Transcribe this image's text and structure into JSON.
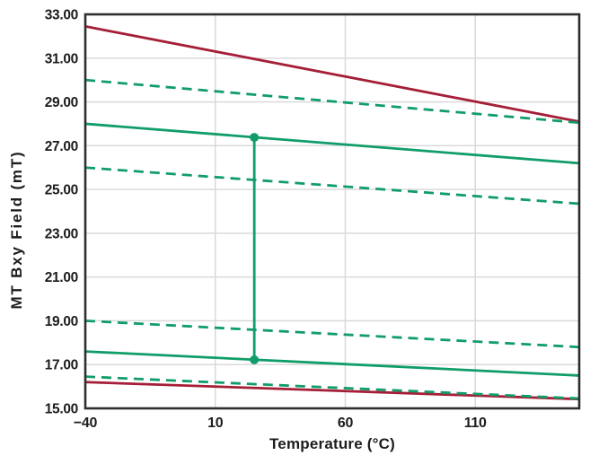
{
  "chart_data": {
    "type": "line",
    "title": "",
    "xlabel": "Temperature (°C)",
    "ylabel": "MT Bxy Field (mT)",
    "xlim": [
      -40,
      150
    ],
    "ylim": [
      15,
      33
    ],
    "grid": true,
    "legend": "none",
    "x_ticks": [
      -40,
      10,
      60,
      110
    ],
    "x_tick_labels": [
      "−40",
      "10",
      "60",
      "110"
    ],
    "y_ticks": [
      33,
      31,
      29,
      27,
      25,
      23,
      21,
      19,
      17,
      15
    ],
    "y_tick_labels": [
      "33.00",
      "31.00",
      "29.00",
      "27.00",
      "25.00",
      "23.00",
      "21.00",
      "19.00",
      "17.00",
      "15.00"
    ],
    "colors": {
      "green": "#109D69",
      "red": "#A51E37",
      "grid": "#D7D7D7",
      "frame": "#2E2E2E",
      "text": "#1C1C1C",
      "background": "#FFFFFF"
    },
    "series": [
      {
        "name": "red-solid-upper",
        "style": "solid",
        "color_key": "red",
        "x": [
          -40,
          150
        ],
        "y": [
          32.45,
          28.1
        ]
      },
      {
        "name": "red-solid-lower",
        "style": "solid",
        "color_key": "red",
        "x": [
          -40,
          150
        ],
        "y": [
          16.2,
          15.42
        ]
      },
      {
        "name": "green-dashed-upper",
        "style": "dashed",
        "color_key": "green",
        "x": [
          -40,
          150
        ],
        "y": [
          30.0,
          28.05
        ]
      },
      {
        "name": "green-solid-upper",
        "style": "solid",
        "color_key": "green",
        "x": [
          -40,
          150
        ],
        "y": [
          28.0,
          26.2
        ]
      },
      {
        "name": "green-dashed-mid-upper",
        "style": "dashed",
        "color_key": "green",
        "x": [
          -40,
          150
        ],
        "y": [
          26.0,
          24.35
        ]
      },
      {
        "name": "green-dashed-mid-lower",
        "style": "dashed",
        "color_key": "green",
        "x": [
          -40,
          150
        ],
        "y": [
          19.0,
          17.8
        ]
      },
      {
        "name": "green-solid-lower",
        "style": "solid",
        "color_key": "green",
        "x": [
          -40,
          150
        ],
        "y": [
          17.6,
          16.5
        ]
      },
      {
        "name": "green-dashed-bottom",
        "style": "dashed",
        "color_key": "green",
        "x": [
          -40,
          150
        ],
        "y": [
          16.45,
          15.45
        ]
      }
    ],
    "annotation": {
      "name": "delta-connector",
      "type": "vertical-connector",
      "x": 25,
      "y_top": 27.38,
      "y_bottom": 17.22,
      "color_key": "green",
      "marker": "circle",
      "marker_radius": 5
    }
  }
}
